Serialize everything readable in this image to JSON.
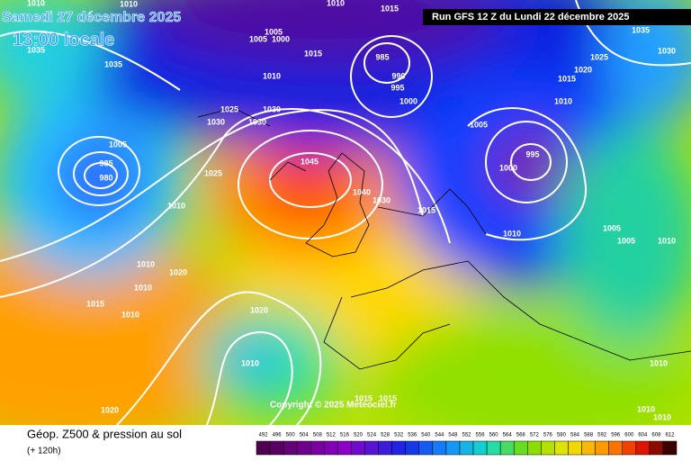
{
  "header": {
    "date": "Samedi 27 décembre 2025",
    "time": "13:00 locale",
    "run": "Run GFS 12 Z du Lundi 22 décembre 2025",
    "copyright": "Copyright © 2025 Meteociel.fr"
  },
  "footer": {
    "title": "Géop. Z500 & pression au sol",
    "subtitle": "(+ 120h)"
  },
  "isobar_labels": [
    "1010",
    "1010",
    "1010",
    "1015",
    "1005",
    "1005",
    "1000",
    "1015",
    "1010",
    "985",
    "990",
    "995",
    "1000",
    "1035",
    "1030",
    "1025",
    "1020",
    "1015",
    "1010",
    "1035",
    "1035",
    "1025",
    "1030",
    "1030",
    "1030",
    "1005",
    "995",
    "1000",
    "1045",
    "1025",
    "1005",
    "985",
    "980",
    "1010",
    "1040",
    "1030",
    "1015",
    "1010",
    "1005",
    "1005",
    "1010",
    "1010",
    "1020",
    "1010",
    "1015",
    "1010",
    "1020",
    "1010",
    "1015",
    "1015",
    "1020",
    "1010",
    "1010",
    "1010"
  ],
  "legend": {
    "scale": [
      492,
      496,
      500,
      504,
      508,
      512,
      516,
      520,
      524,
      528,
      532,
      536,
      540,
      544,
      548,
      552,
      556,
      560,
      564,
      568,
      572,
      576,
      580,
      584,
      588,
      592,
      596,
      600,
      604,
      608,
      612
    ]
  }
}
